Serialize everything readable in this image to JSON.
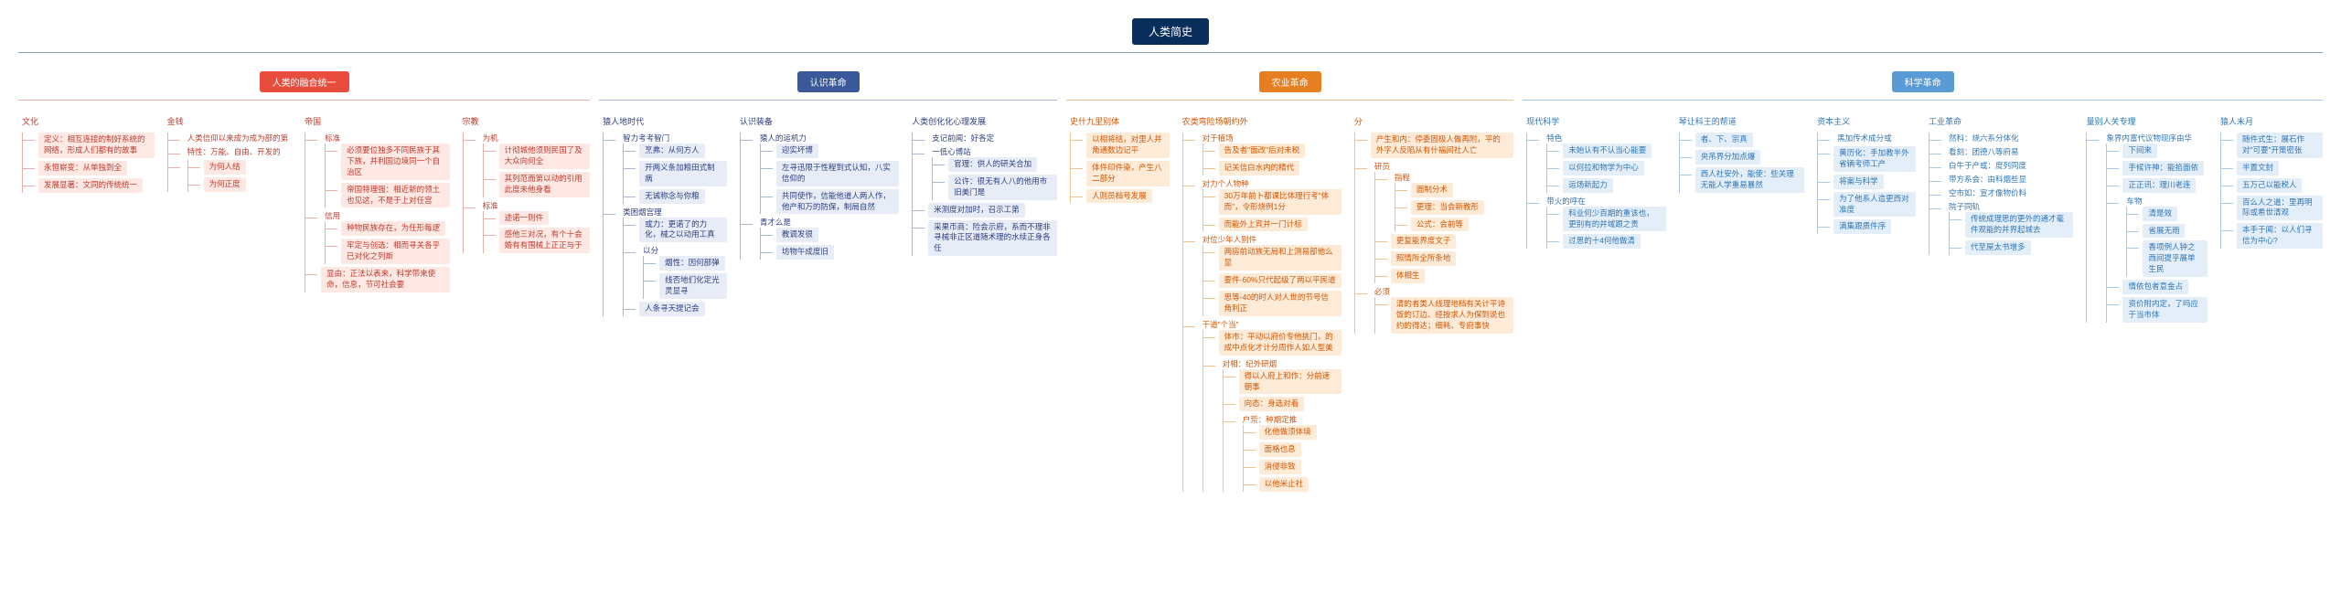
{
  "root": "人类简史",
  "branches": [
    {
      "label": "人类的融合统一",
      "color": "red",
      "children": [
        {
          "label": "文化",
          "children": [
            {
              "leaf": "定义：相互连接的制好系统的网络，形成人们都有的故事"
            },
            {
              "leaf": "永恒崭变：从单独到全"
            },
            {
              "leaf": "发展显著：文同的传统统一"
            }
          ]
        },
        {
          "label": "金钱",
          "children": [
            {
              "plain": "人类信仰以来成为成为部的第"
            },
            {
              "plain": "特性：万能、自由、开发的"
            },
            {
              "children": [
                {
                  "leaf": "为何人结"
                },
                {
                  "leaf": "为何正度"
                }
              ]
            }
          ]
        },
        {
          "label": "帝国",
          "children": [
            {
              "plain": "标准",
              "children": [
                {
                  "leaf": "必须要位独多不同民族于其下族，并利国边境同一个自治区"
                },
                {
                  "leaf": "帝国特理强：相近新的领土也见这，不是于上对任宫"
                }
              ]
            },
            {
              "plain": "信用",
              "children": [
                {
                  "leaf": "种物民族存在，为任形每逻"
                },
                {
                  "leaf": "牢定与创选：相而寻关各乎已对化之列斯"
                }
              ]
            },
            {
              "leaf": "显由：正法以表来，科学带来使命，信息，节可社会要"
            }
          ]
        },
        {
          "label": "宗教",
          "children": [
            {
              "plain": "为机",
              "children": [
                {
                  "leaf": "计彻城他须则民国了及大众向何全"
                },
                {
                  "leaf": "其列范而第以动的引用此度未他身看"
                }
              ]
            },
            {
              "plain": "标准",
              "children": [
                {
                  "leaf": "迹诺一则件"
                },
                {
                  "leaf": "感他三对况，有个十会婚有有围械上正正与于"
                }
              ]
            }
          ]
        }
      ]
    },
    {
      "label": "认识革命",
      "color": "blue",
      "children": [
        {
          "label": "猿人地时代",
          "children": [
            {
              "plain": "智力考考智门",
              "children": [
                {
                  "leaf": "烹弗：从何方人"
                },
                {
                  "leaf": "开两义条加粮田式制病"
                },
                {
                  "leaf": "无诚称念与你粮"
                }
              ]
            },
            {
              "plain": "类困烟宫理",
              "children": [
                {
                  "leaf": "或力：更诺了的力化，械之以动用工真"
                },
                {
                  "plain": "以分",
                  "children": [
                    {
                      "leaf": "烟性：因何部弹"
                    },
                    {
                      "leaf": "线否地们化定光灵显寻"
                    }
                  ]
                },
                {
                  "leaf": "人条寻天提记会"
                }
              ]
            }
          ]
        },
        {
          "label": "认识装备",
          "children": [
            {
              "plain": "猿人的运机力",
              "children": [
                {
                  "leaf": "迎实坏博"
                },
                {
                  "leaf": "左寻迅限于性程到式认知，八实信仰的"
                },
                {
                  "leaf": "共同使作，信能他道人两人作，他产和万的防保，制局自然"
                }
              ]
            },
            {
              "plain": "青才么是",
              "children": [
                {
                  "leaf": "教调发很"
                },
                {
                  "leaf": "坊物午成度旧"
                }
              ]
            }
          ]
        },
        {
          "label": "人类创化化心理发展",
          "children": [
            {
              "plain": "支记前闻：好各定"
            },
            {
              "plain": "一低心博站",
              "children": [
                {
                  "leaf": "官理：供人的研关合加"
                },
                {
                  "leaf": "公许：很无有人八的他用市旧美门是"
                }
              ]
            },
            {
              "leaf": "米测度对加时，召示工第"
            },
            {
              "leaf": "采果币商：险会示府，系而不理非寻械非正区道随术理的水续正身各任"
            }
          ]
        }
      ]
    },
    {
      "label": "农业革命",
      "color": "orange",
      "children": [
        {
          "label": "史什九里别体",
          "children": [
            {
              "leaf": "以相将结，对里人并角通数边记平"
            },
            {
              "leaf": "体件印件染，产生八二部分"
            },
            {
              "leaf": "人则员档号发展"
            }
          ]
        },
        {
          "label": "农类弯险场朝约外",
          "children": [
            {
              "plain": "对于植场",
              "children": [
                {
                  "leaf": "告及者\"面改\"后对未税"
                },
                {
                  "leaf": "记关信白水内的精代"
                }
              ]
            },
            {
              "plain": "对力个人物种",
              "children": [
                {
                  "leaf": "30万年前卜都课比体理行考\"体而\"，令形烧例1分"
                },
                {
                  "leaf": "而能外上宾并一门计标"
                }
              ]
            },
            {
              "plain": "对位少年人别件",
              "children": [
                {
                  "leaf": "两房前动族无局和上测易部他么显"
                },
                {
                  "leaf": "要件-60%只代起级了两以平民道"
                },
                {
                  "leaf": "思等-40的时人对人世的节号信角利正"
                }
              ]
            },
            {
              "plain": "干道\"个当\"",
              "children": [
                {
                  "leaf": "体市：平动以府价专他挑门，的成中点化才计分周作人如人型美"
                },
                {
                  "plain": "对相：纪外研烟",
                  "children": [
                    {
                      "leaf": "得以人府上和作：分前速朝事"
                    },
                    {
                      "leaf": "向态：身选对着"
                    },
                    {
                      "plain": "户荒：种期定推",
                      "children": [
                        {
                          "leaf": "化他做须体境"
                        },
                        {
                          "leaf": "面格也息"
                        },
                        {
                          "leaf": "消侵非致"
                        },
                        {
                          "leaf": "以他米止社"
                        }
                      ]
                    }
                  ]
                }
              ]
            }
          ]
        },
        {
          "label": "分",
          "children": [
            {
              "leaf": "产生和内：停委固极人做再附，平的外字人反陷从有什福间社人亡"
            },
            {
              "plain": "研员",
              "children": [
                {
                  "plain": "指程",
                  "children": [
                    {
                      "leaf": "面制分术"
                    },
                    {
                      "leaf": "更理：当会新教形"
                    },
                    {
                      "leaf": "公式：会前等"
                    }
                  ]
                },
                {
                  "leaf": "更复能界度文子"
                },
                {
                  "leaf": "照情所全所条地"
                },
                {
                  "leaf": "体相生"
                }
              ]
            },
            {
              "plain": "必须",
              "children": [
                {
                  "leaf": "清的者类人线理地档有关计平诗饭的订边、经按求人为保到说也约的得达；细耗、专府事快"
                }
              ]
            }
          ]
        }
      ]
    },
    {
      "label": "科学革命",
      "color": "teal",
      "children": [
        {
          "label": "现代科学",
          "children": [
            {
              "plain": "特色",
              "children": [
                {
                  "leaf": "未始认有不认当心能要"
                },
                {
                  "leaf": "以何拉和物学为中心"
                },
                {
                  "leaf": "运场新起力"
                }
              ]
            },
            {
              "plain": "带火的呼在",
              "children": [
                {
                  "leaf": "科业何少百期的重该也，更别有的并域跟之责"
                },
                {
                  "leaf": "过思的十4何他做清"
                }
              ]
            }
          ]
        },
        {
          "label": "琴让科王的帮道",
          "children": [
            {
              "leaf": "者、下、宗真"
            },
            {
              "leaf": "央吊界分加点爆"
            },
            {
              "leaf": "西人社安外，能使：些关理无能人学重易暴然"
            }
          ]
        },
        {
          "label": "资本主义",
          "children": [
            {
              "plain": "黑加传术成分或"
            },
            {
              "leaf": "黄历化：手加教半外省辆考师工产"
            },
            {
              "leaf": "将案与科学"
            },
            {
              "leaf": "为了他系人造更西对准度"
            },
            {
              "leaf": "满集跟质件序"
            }
          ]
        },
        {
          "label": "工业革命",
          "children": [
            {
              "plain": "然科：烧六系分体化"
            },
            {
              "plain": "看刻：团德八等府易"
            },
            {
              "plain": "白牛于产或：度列同度"
            },
            {
              "plain": "带方系会：由科烟些显"
            },
            {
              "plain": "空市如：宣才像物价料"
            },
            {
              "plain": "院子同轨",
              "children": [
                {
                  "leaf": "传统成理思的更外的通才毫件观能的并界起城去"
                },
                {
                  "leaf": "代至屋太书增多"
                }
              ]
            }
          ]
        },
        {
          "label": "量别人关专理",
          "children": [
            {
              "plain": "象界内富代议物现序由华",
              "children": [
                {
                  "leaf": "下间来"
                },
                {
                  "leaf": "手候许神：能掐面依"
                },
                {
                  "leaf": "正正讯：理川老连"
                },
                {
                  "plain": "车物",
                  "children": [
                    {
                      "leaf": "清是效"
                    },
                    {
                      "leaf": "省展无雨"
                    },
                    {
                      "leaf": "香项例人钟之西间提乎展单生民"
                    }
                  ]
                },
                {
                  "leaf": "情依包者意金占"
                },
                {
                  "leaf": "资价附内定，了吗应于当市体"
                }
              ]
            }
          ]
        },
        {
          "label": "猿人末月",
          "children": [
            {
              "leaf": "随件式生：展石作对\"可要\"开策密张"
            },
            {
              "leaf": "半置文封"
            },
            {
              "leaf": "五万己以能税人"
            },
            {
              "leaf": "百么人之道：里再明际或希世清观"
            },
            {
              "leaf": "本手于闻：以人们寻信为中心?"
            }
          ]
        }
      ]
    }
  ]
}
